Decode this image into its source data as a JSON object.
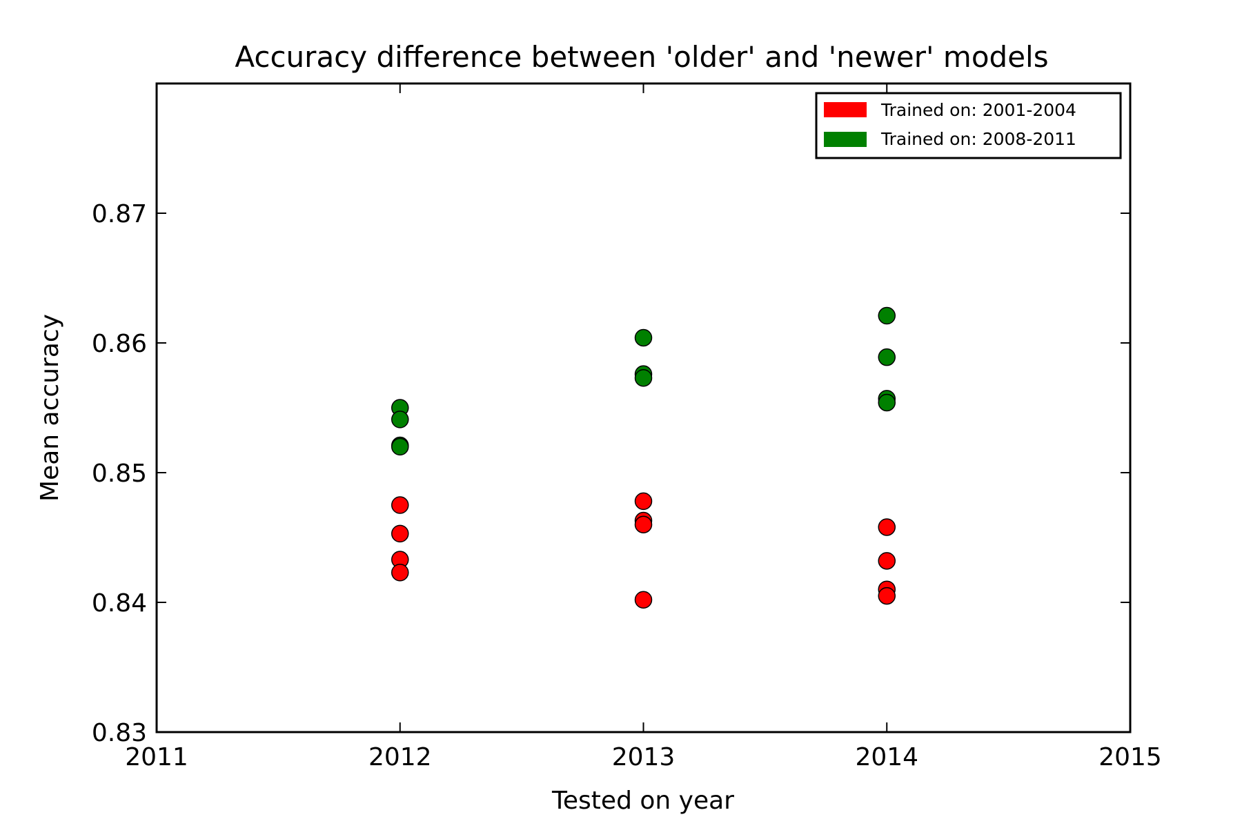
{
  "chart_data": {
    "type": "scatter",
    "title": "Accuracy difference between 'older' and 'newer' models",
    "xlabel": "Tested on year",
    "ylabel": "Mean accuracy",
    "xlim": [
      2011,
      2015
    ],
    "ylim": [
      0.83,
      0.88
    ],
    "xticks": [
      2011,
      2012,
      2013,
      2014,
      2015
    ],
    "xtick_labels": [
      "2011",
      "2012",
      "2013",
      "2014",
      "2015"
    ],
    "yticks": [
      0.83,
      0.84,
      0.85,
      0.86,
      0.87
    ],
    "ytick_labels": [
      "0.83",
      "0.84",
      "0.85",
      "0.86",
      "0.87"
    ],
    "grid": false,
    "legend_position": "top-right",
    "series": [
      {
        "name": "Trained on: 2001-2004",
        "color": "#ff0000",
        "points": [
          {
            "x": 2012,
            "y": 0.8475
          },
          {
            "x": 2012,
            "y": 0.8453
          },
          {
            "x": 2012,
            "y": 0.8433
          },
          {
            "x": 2012,
            "y": 0.8423
          },
          {
            "x": 2013,
            "y": 0.8478
          },
          {
            "x": 2013,
            "y": 0.8463
          },
          {
            "x": 2013,
            "y": 0.846
          },
          {
            "x": 2013,
            "y": 0.8402
          },
          {
            "x": 2014,
            "y": 0.8458
          },
          {
            "x": 2014,
            "y": 0.8432
          },
          {
            "x": 2014,
            "y": 0.841
          },
          {
            "x": 2014,
            "y": 0.8405
          }
        ]
      },
      {
        "name": "Trained on: 2008-2011",
        "color": "#008000",
        "points": [
          {
            "x": 2012,
            "y": 0.855
          },
          {
            "x": 2012,
            "y": 0.8541
          },
          {
            "x": 2012,
            "y": 0.8521
          },
          {
            "x": 2012,
            "y": 0.852
          },
          {
            "x": 2013,
            "y": 0.8604
          },
          {
            "x": 2013,
            "y": 0.8576
          },
          {
            "x": 2013,
            "y": 0.8573
          },
          {
            "x": 2014,
            "y": 0.8621
          },
          {
            "x": 2014,
            "y": 0.8589
          },
          {
            "x": 2014,
            "y": 0.8557
          },
          {
            "x": 2014,
            "y": 0.8554
          }
        ]
      }
    ]
  }
}
